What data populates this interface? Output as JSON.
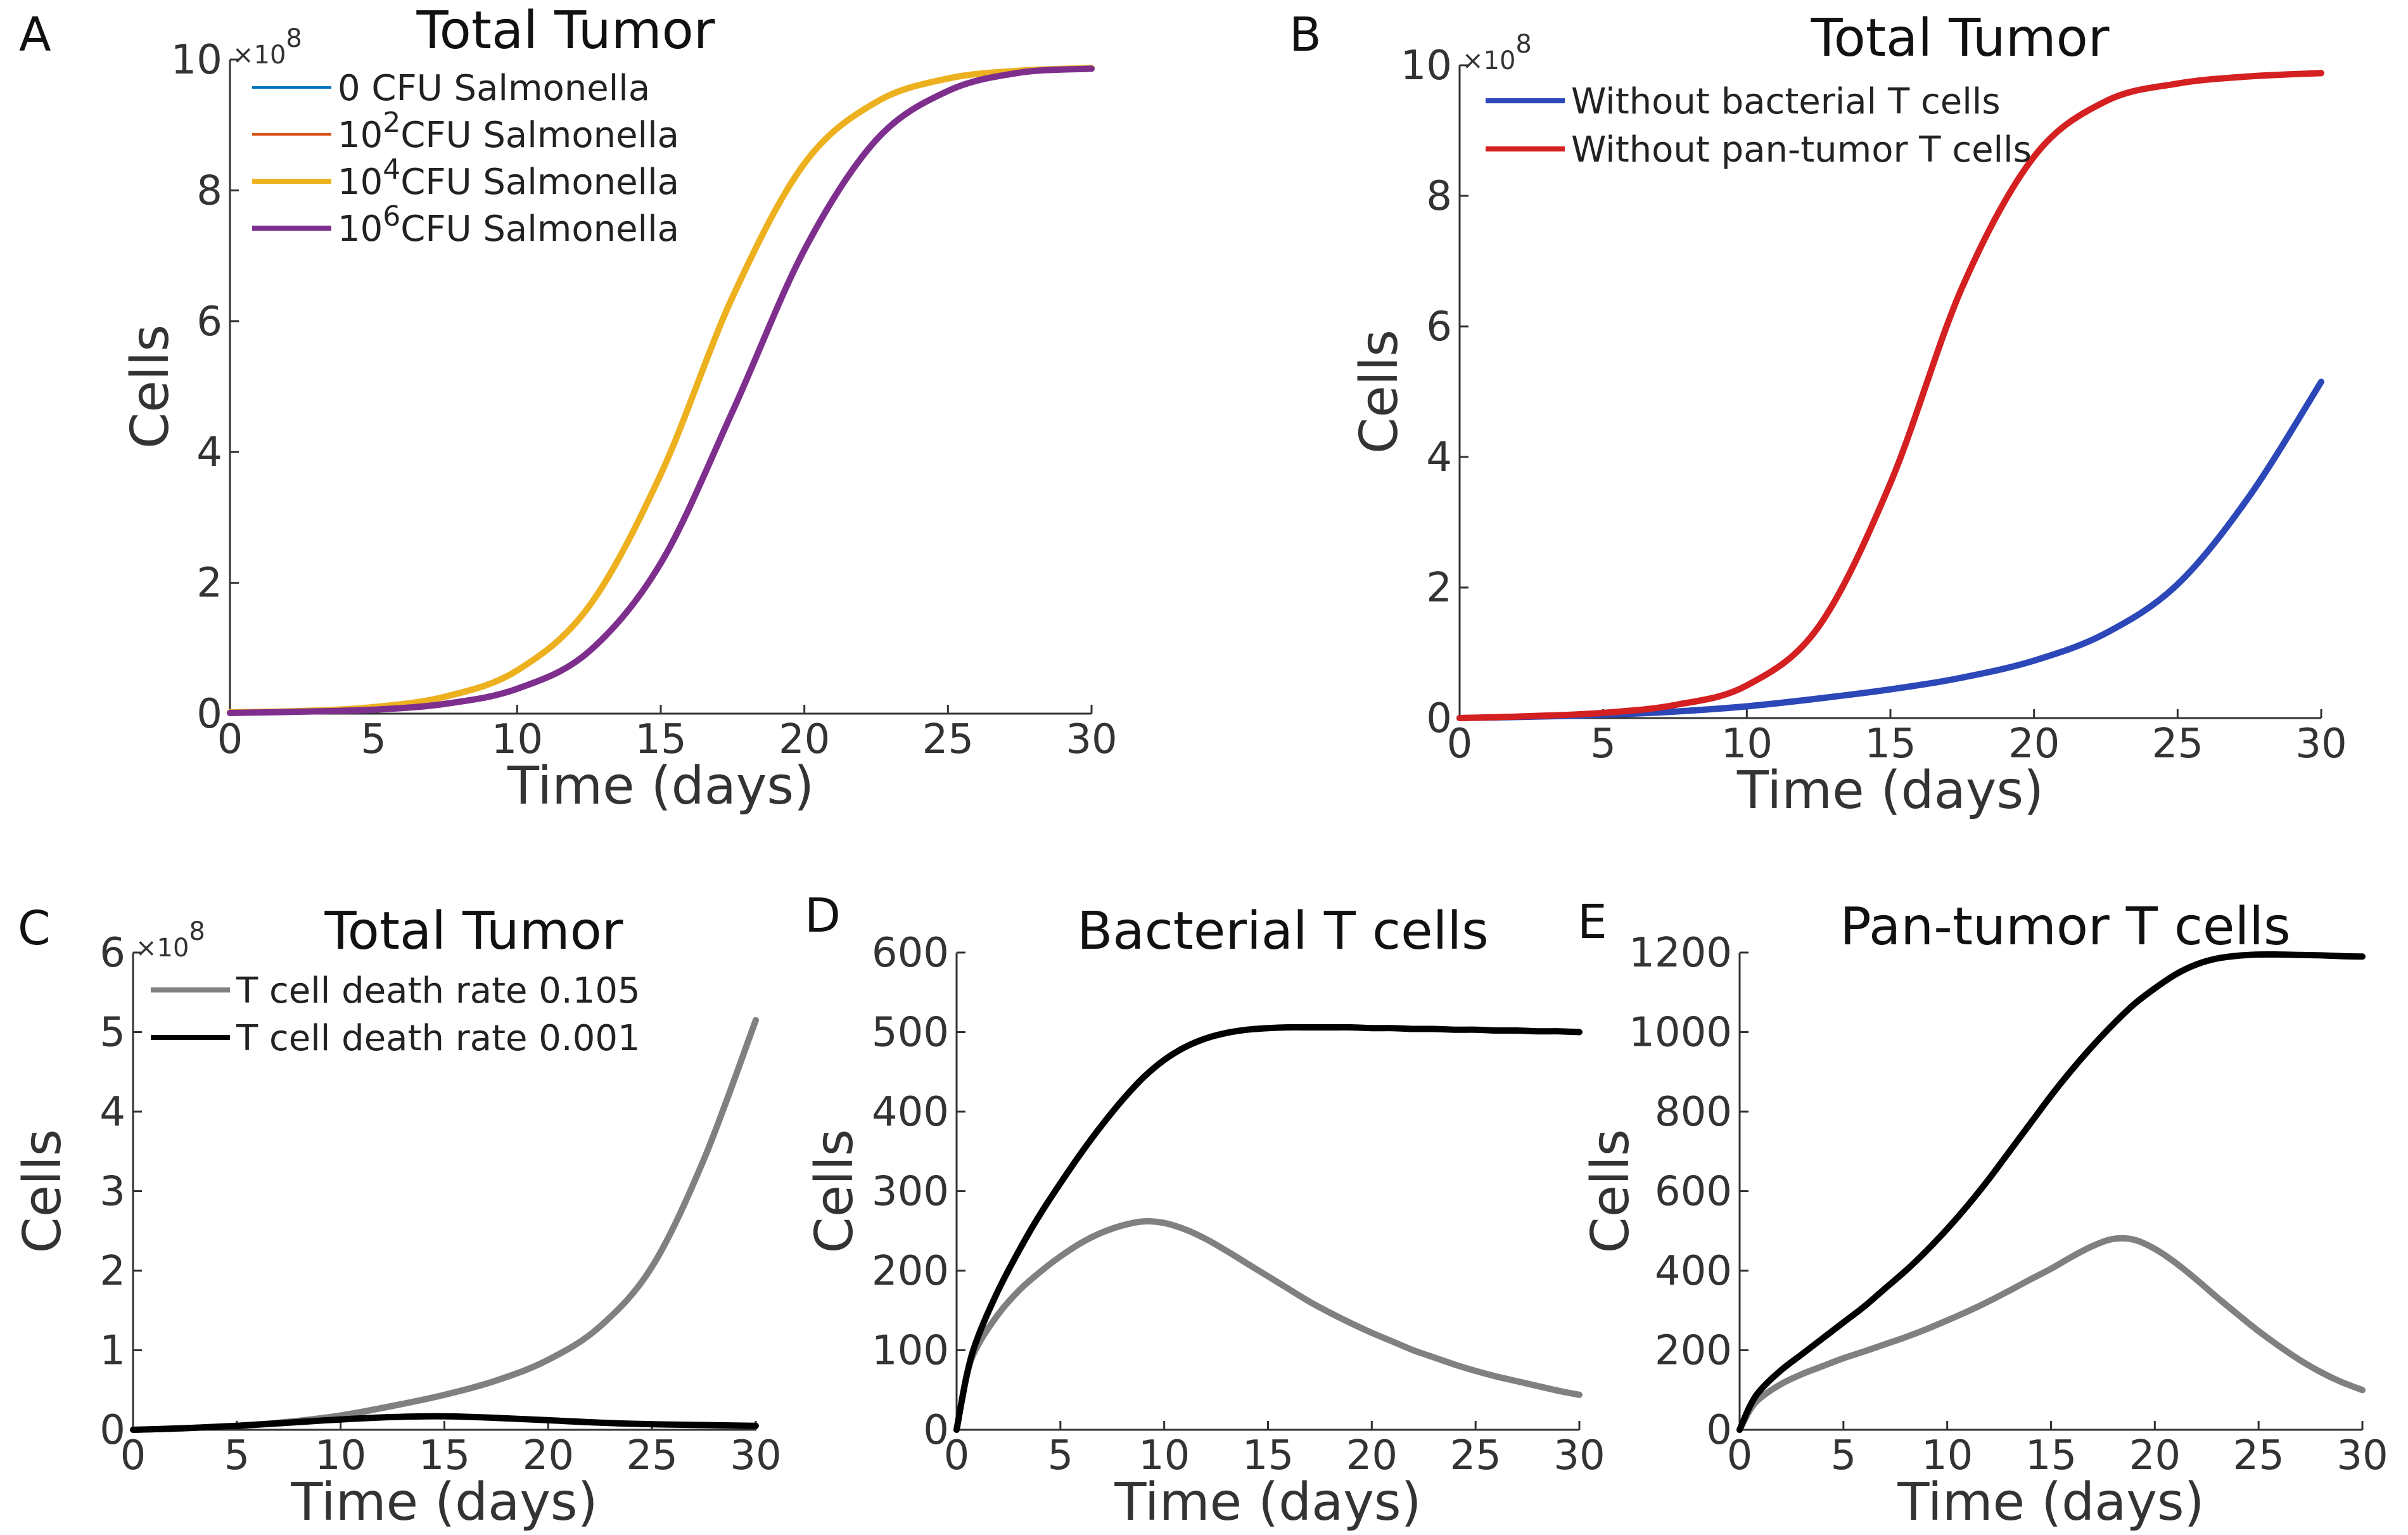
{
  "chart_data": [
    {
      "panel": "A",
      "type": "line",
      "title": "Total Tumor",
      "xlabel": "Time (days)",
      "ylabel": "Cells",
      "xlim": [
        0,
        30
      ],
      "ylim": [
        0,
        10
      ],
      "xticks": [
        0,
        5,
        10,
        15,
        20,
        25,
        30
      ],
      "yticks": [
        0,
        2,
        4,
        6,
        8,
        10
      ],
      "y_exponent": "×10",
      "y_exponent_power": "8",
      "grid": false,
      "legend_position": "top-left",
      "legend": [
        {
          "base": "0 CFU Salmonella",
          "sup": "",
          "rest": ""
        },
        {
          "base": "10",
          "sup": "2",
          "rest": "CFU Salmonella"
        },
        {
          "base": "10",
          "sup": "4",
          "rest": "CFU Salmonella"
        },
        {
          "base": "10",
          "sup": "6",
          "rest": "CFU Salmonella"
        }
      ],
      "series": [
        {
          "name": "0 CFU Salmonella",
          "color": "#0072BD",
          "width": 4,
          "x": [
            0,
            2.5,
            5,
            7.5,
            10,
            12.5,
            15,
            17.5,
            20,
            22.5,
            25,
            27.5,
            30
          ],
          "y": [
            0.02,
            0.04,
            0.1,
            0.26,
            0.66,
            1.64,
            3.66,
            6.37,
            8.41,
            9.35,
            9.71,
            9.83,
            9.87
          ]
        },
        {
          "name": "10^2 CFU Salmonella",
          "color": "#D95319",
          "width": 4,
          "x": [
            0,
            2.5,
            5,
            7.5,
            10,
            12.5,
            15,
            17.5,
            20,
            22.5,
            25,
            27.5,
            30
          ],
          "y": [
            0.02,
            0.04,
            0.1,
            0.26,
            0.66,
            1.64,
            3.66,
            6.37,
            8.41,
            9.35,
            9.71,
            9.83,
            9.87
          ]
        },
        {
          "name": "10^4 CFU Salmonella",
          "color": "#EDB120",
          "width": 10,
          "x": [
            0,
            2.5,
            5,
            7.5,
            10,
            12.5,
            15,
            17.5,
            20,
            22.5,
            25,
            27.5,
            30
          ],
          "y": [
            0.02,
            0.04,
            0.1,
            0.26,
            0.66,
            1.64,
            3.66,
            6.37,
            8.41,
            9.35,
            9.71,
            9.83,
            9.87
          ]
        },
        {
          "name": "10^6 CFU Salmonella",
          "color": "#7E2F8E",
          "width": 10,
          "x": [
            0,
            2.5,
            5,
            7.5,
            10,
            12.5,
            15,
            17.5,
            20,
            22.5,
            25,
            27.5,
            30
          ],
          "y": [
            0.01,
            0.03,
            0.06,
            0.15,
            0.38,
            0.95,
            2.3,
            4.62,
            7.09,
            8.77,
            9.52,
            9.8,
            9.86
          ]
        }
      ]
    },
    {
      "panel": "B",
      "type": "line",
      "title": "Total Tumor",
      "xlabel": "Time (days)",
      "ylabel": "Cells",
      "xlim": [
        0,
        30
      ],
      "ylim": [
        0,
        10
      ],
      "xticks": [
        0,
        5,
        10,
        15,
        20,
        25,
        30
      ],
      "yticks": [
        0,
        2,
        4,
        6,
        8,
        10
      ],
      "y_exponent": "×10",
      "y_exponent_power": "8",
      "grid": false,
      "legend_position": "top-left",
      "legend": [
        {
          "base": "Without bacterial T cells",
          "sup": "",
          "rest": ""
        },
        {
          "base": "Without pan-tumor T cells",
          "sup": "",
          "rest": ""
        }
      ],
      "series": [
        {
          "name": "Without bacterial T cells",
          "color": "#2B47B8",
          "width": 10,
          "x": [
            0,
            2.5,
            5,
            7.5,
            10,
            12.5,
            15,
            17.5,
            20,
            22.5,
            25,
            27.5,
            30
          ],
          "y": [
            0.0,
            0.02,
            0.05,
            0.1,
            0.18,
            0.3,
            0.44,
            0.62,
            0.88,
            1.3,
            2.05,
            3.4,
            5.15
          ]
        },
        {
          "name": "Without pan-tumor T cells",
          "color": "#D42020",
          "width": 10,
          "x": [
            0,
            2.5,
            5,
            7.5,
            10,
            12.5,
            15,
            17.5,
            20,
            22.5,
            25,
            27.5,
            30
          ],
          "y": [
            0.0,
            0.03,
            0.08,
            0.2,
            0.5,
            1.4,
            3.6,
            6.6,
            8.6,
            9.45,
            9.72,
            9.83,
            9.88
          ]
        }
      ]
    },
    {
      "panel": "C",
      "type": "line",
      "title": "Total Tumor",
      "xlabel": "Time (days)",
      "ylabel": "Cells",
      "xlim": [
        0,
        30
      ],
      "ylim": [
        0,
        6
      ],
      "xticks": [
        0,
        5,
        10,
        15,
        20,
        25,
        30
      ],
      "yticks": [
        0,
        1,
        2,
        3,
        4,
        5,
        6
      ],
      "y_exponent": "×10",
      "y_exponent_power": "8",
      "grid": false,
      "legend_position": "top-left",
      "legend": [
        {
          "base": "T cell death rate 0.105",
          "sup": "",
          "rest": ""
        },
        {
          "base": "T cell death rate 0.001",
          "sup": "",
          "rest": ""
        }
      ],
      "series": [
        {
          "name": "T cell death rate 0.105",
          "color": "#808080",
          "width": 10,
          "x": [
            0,
            2.5,
            5,
            7.5,
            10,
            12.5,
            15,
            17.5,
            20,
            22.5,
            25,
            27.5,
            30
          ],
          "y": [
            0.0,
            0.02,
            0.05,
            0.1,
            0.18,
            0.3,
            0.44,
            0.62,
            0.88,
            1.3,
            2.05,
            3.4,
            5.15
          ]
        },
        {
          "name": "T cell death rate 0.001",
          "color": "#000000",
          "width": 10,
          "x": [
            0,
            2.5,
            5,
            7.5,
            10,
            12.5,
            15,
            17.5,
            20,
            22.5,
            25,
            27.5,
            30
          ],
          "y": [
            0.0,
            0.02,
            0.05,
            0.09,
            0.13,
            0.16,
            0.17,
            0.15,
            0.12,
            0.09,
            0.07,
            0.06,
            0.05
          ]
        }
      ]
    },
    {
      "panel": "D",
      "type": "line",
      "title": "Bacterial T cells",
      "xlabel": "Time (days)",
      "ylabel": "Cells",
      "xlim": [
        0,
        30
      ],
      "ylim": [
        0,
        600
      ],
      "xticks": [
        0,
        5,
        10,
        15,
        20,
        25,
        30
      ],
      "yticks": [
        0,
        100,
        200,
        300,
        400,
        500,
        600
      ],
      "grid": false,
      "legend": [],
      "series": [
        {
          "name": "T cell death rate 0.105",
          "color": "#808080",
          "width": 10,
          "x": [
            0,
            0.5,
            1,
            2,
            3,
            4,
            5,
            6,
            7,
            8,
            9,
            10,
            11,
            12,
            13,
            14,
            15,
            16,
            17,
            18,
            19,
            20,
            21,
            22,
            23,
            24,
            25,
            26,
            27,
            28,
            29,
            30
          ],
          "y": [
            0,
            70,
            105,
            145,
            175,
            198,
            218,
            235,
            248,
            257,
            262,
            260,
            252,
            240,
            225,
            209,
            193,
            177,
            161,
            147,
            134,
            122,
            111,
            100,
            91,
            82,
            74,
            67,
            61,
            55,
            49,
            44
          ]
        },
        {
          "name": "T cell death rate 0.001",
          "color": "#000000",
          "width": 10,
          "x": [
            0,
            0.5,
            1,
            2,
            3,
            4,
            5,
            6,
            7,
            8,
            9,
            10,
            11,
            12,
            13,
            14,
            15,
            16,
            17,
            18,
            19,
            20,
            21,
            22,
            23,
            24,
            25,
            26,
            27,
            28,
            29,
            30
          ],
          "y": [
            0,
            70,
            115,
            175,
            225,
            270,
            310,
            348,
            383,
            415,
            443,
            465,
            481,
            492,
            499,
            503,
            505,
            506,
            506,
            506,
            506,
            505,
            505,
            504,
            504,
            503,
            503,
            502,
            502,
            501,
            501,
            500
          ]
        }
      ]
    },
    {
      "panel": "E",
      "type": "line",
      "title": "Pan-tumor T cells",
      "xlabel": "Time (days)",
      "ylabel": "Cells",
      "xlim": [
        0,
        30
      ],
      "ylim": [
        0,
        1200
      ],
      "xticks": [
        0,
        5,
        10,
        15,
        20,
        25,
        30
      ],
      "yticks": [
        0,
        200,
        400,
        600,
        800,
        1000,
        1200
      ],
      "grid": false,
      "legend": [],
      "series": [
        {
          "name": "T cell death rate 0.105",
          "color": "#808080",
          "width": 10,
          "x": [
            0,
            0.5,
            1,
            2,
            3,
            4,
            5,
            6,
            7,
            8,
            9,
            10,
            11,
            12,
            13,
            14,
            15,
            16,
            17,
            18,
            19,
            20,
            21,
            22,
            23,
            24,
            25,
            26,
            27,
            28,
            29,
            30
          ],
          "y": [
            0,
            50,
            80,
            115,
            140,
            160,
            180,
            197,
            215,
            233,
            253,
            275,
            298,
            323,
            350,
            378,
            405,
            435,
            462,
            480,
            478,
            455,
            420,
            378,
            333,
            290,
            248,
            210,
            175,
            145,
            120,
            100
          ]
        },
        {
          "name": "T cell death rate 0.001",
          "color": "#000000",
          "width": 10,
          "x": [
            0,
            0.5,
            1,
            2,
            3,
            4,
            5,
            6,
            7,
            8,
            9,
            10,
            11,
            12,
            13,
            14,
            15,
            16,
            17,
            18,
            19,
            20,
            21,
            22,
            23,
            24,
            25,
            26,
            27,
            28,
            29,
            30
          ],
          "y": [
            0,
            60,
            100,
            150,
            190,
            230,
            270,
            310,
            355,
            400,
            450,
            505,
            565,
            630,
            700,
            770,
            840,
            905,
            965,
            1020,
            1070,
            1110,
            1145,
            1170,
            1185,
            1192,
            1195,
            1195,
            1194,
            1193,
            1191,
            1190
          ]
        }
      ]
    }
  ]
}
